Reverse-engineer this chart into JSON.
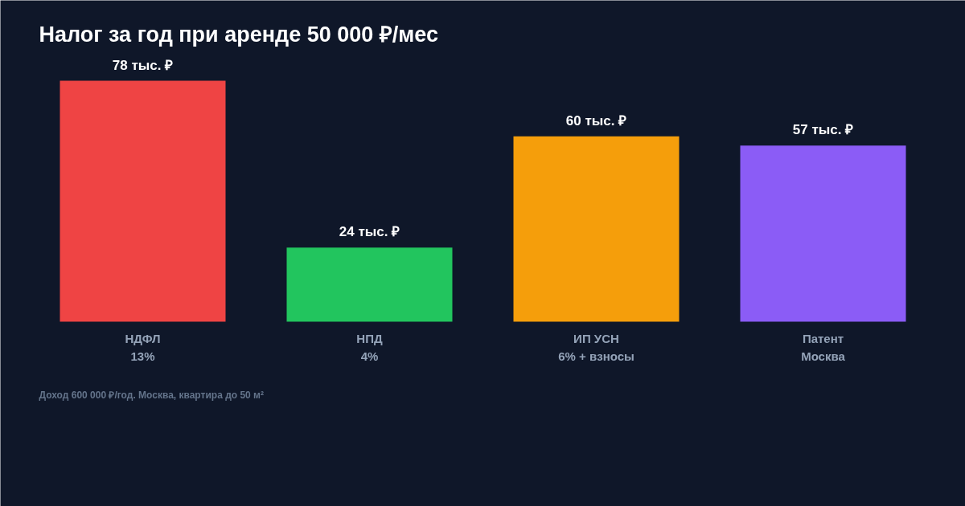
{
  "chart_data": {
    "type": "bar",
    "title": "Налог за год при аренде 50 000 ₽/мес",
    "categories": [
      "НДФЛ\n13%",
      "НПД\n4%",
      "ИП УСН\n6% + взносы",
      "Патент\nМосква"
    ],
    "values": [
      78,
      24,
      60,
      57
    ],
    "colors": [
      "#ef4444",
      "#22c55e",
      "#f59e0b",
      "#8b5cf6"
    ],
    "value_labels": [
      "78 тыс. ₽",
      "24 тыс. ₽",
      "60 тыс. ₽",
      "57 тыс. ₽"
    ],
    "annotations": [
      "Доход 600 000 ₽/год. Москва, квартира до 50 м²"
    ],
    "grid": false
  }
}
